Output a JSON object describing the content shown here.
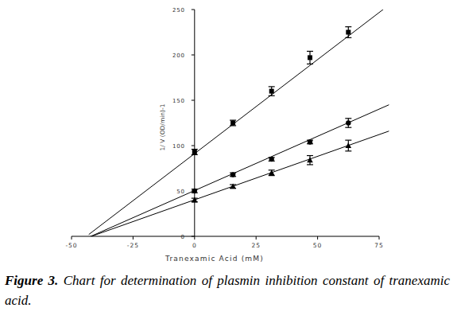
{
  "chart_data": {
    "type": "scatter",
    "x_label": "Tranexamic Acid (mM)",
    "y_label": "1/ V (OD/min)-1",
    "caption_label": "Figure 3.",
    "caption": "Chart for determination of plasmin inhibition constant of tranexamic acid.",
    "x": [
      0,
      15.6,
      31.3,
      46.9,
      62.5
    ],
    "series": [
      {
        "color": "#000000",
        "marker": "square",
        "values": [
          93,
          125,
          160,
          197,
          225
        ],
        "errors": [
          3,
          3,
          5,
          7,
          6
        ],
        "fit_x": [
          -43,
          79
        ],
        "fit_values": [
          2,
          255
        ]
      },
      {
        "color": "#000000",
        "marker": "circle",
        "values": [
          50,
          68,
          85,
          104,
          125
        ],
        "errors": [
          2,
          2,
          2,
          2,
          5
        ],
        "fit_x": [
          -43,
          79
        ],
        "fit_values": [
          -1,
          145
        ]
      },
      {
        "color": "#000000",
        "marker": "triangle",
        "values": [
          40,
          55,
          70,
          84,
          100
        ],
        "errors": [
          2,
          2,
          3,
          5,
          6
        ],
        "fit_x": [
          -43,
          79
        ],
        "fit_values": [
          -1,
          116
        ]
      }
    ],
    "xlim": [
      -50,
      75
    ],
    "xticks": [
      -50,
      -25,
      0,
      25,
      50,
      75
    ],
    "ylim": [
      0,
      250
    ],
    "yticks": [
      0,
      50,
      100,
      150,
      200,
      250
    ]
  }
}
